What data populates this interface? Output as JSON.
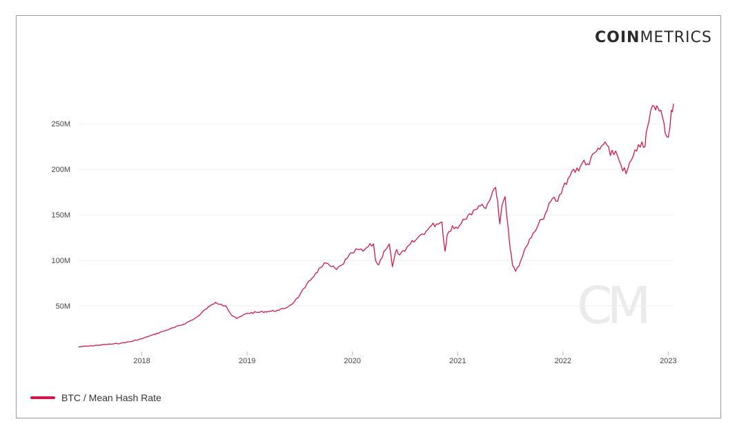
{
  "brand": {
    "bold": "COIN",
    "light": "METRICS",
    "watermark": "CM"
  },
  "chart_data": {
    "type": "line",
    "ylabel": "",
    "xlabel": "",
    "xlim": [
      2017.4,
      2023.05
    ],
    "ylim": [
      0,
      285
    ],
    "y_ticks": [
      50,
      100,
      150,
      200,
      250
    ],
    "y_tick_labels": [
      "50M",
      "100M",
      "150M",
      "200M",
      "250M"
    ],
    "x_ticks": [
      2018,
      2019,
      2020,
      2021,
      2022,
      2023
    ],
    "x_tick_labels": [
      "2018",
      "2019",
      "2020",
      "2021",
      "2022",
      "2023"
    ],
    "grid": "horizontal",
    "legend_position": "bottom-left",
    "series": [
      {
        "name": "BTC / Mean Hash Rate",
        "color": "#d4154a",
        "x": [
          2017.4,
          2017.5,
          2017.6,
          2017.7,
          2017.8,
          2017.9,
          2018.0,
          2018.1,
          2018.2,
          2018.3,
          2018.4,
          2018.5,
          2018.55,
          2018.6,
          2018.65,
          2018.7,
          2018.75,
          2018.8,
          2018.85,
          2018.9,
          2018.95,
          2019.0,
          2019.1,
          2019.2,
          2019.3,
          2019.35,
          2019.4,
          2019.45,
          2019.5,
          2019.55,
          2019.6,
          2019.65,
          2019.7,
          2019.75,
          2019.8,
          2019.85,
          2019.9,
          2019.95,
          2020.0,
          2020.05,
          2020.1,
          2020.15,
          2020.2,
          2020.22,
          2020.25,
          2020.3,
          2020.35,
          2020.38,
          2020.42,
          2020.45,
          2020.5,
          2020.55,
          2020.6,
          2020.65,
          2020.7,
          2020.75,
          2020.8,
          2020.85,
          2020.88,
          2020.9,
          2020.95,
          2021.0,
          2021.05,
          2021.1,
          2021.15,
          2021.2,
          2021.25,
          2021.3,
          2021.33,
          2021.36,
          2021.38,
          2021.4,
          2021.42,
          2021.45,
          2021.48,
          2021.5,
          2021.52,
          2021.55,
          2021.6,
          2021.65,
          2021.7,
          2021.75,
          2021.8,
          2021.85,
          2021.9,
          2021.95,
          2022.0,
          2022.05,
          2022.1,
          2022.15,
          2022.2,
          2022.25,
          2022.3,
          2022.35,
          2022.4,
          2022.45,
          2022.5,
          2022.55,
          2022.6,
          2022.65,
          2022.7,
          2022.75,
          2022.78,
          2022.8,
          2022.85,
          2022.88,
          2022.9,
          2022.93,
          2022.95,
          2022.97,
          2023.0,
          2023.03,
          2023.05
        ],
        "y": [
          5,
          6,
          7,
          8,
          9,
          11,
          14,
          18,
          22,
          26,
          30,
          36,
          40,
          46,
          50,
          54,
          52,
          50,
          40,
          36,
          39,
          42,
          43,
          44,
          45,
          47,
          50,
          55,
          62,
          70,
          78,
          86,
          92,
          97,
          93,
          90,
          95,
          102,
          108,
          112,
          110,
          115,
          118,
          100,
          95,
          110,
          118,
          93,
          112,
          106,
          110,
          118,
          122,
          128,
          132,
          138,
          140,
          142,
          110,
          128,
          138,
          135,
          145,
          150,
          155,
          160,
          158,
          165,
          175,
          180,
          165,
          140,
          160,
          170,
          135,
          112,
          95,
          88,
          100,
          115,
          125,
          135,
          145,
          155,
          168,
          165,
          180,
          190,
          200,
          198,
          210,
          205,
          218,
          222,
          230,
          215,
          220,
          205,
          195,
          210,
          220,
          230,
          225,
          245,
          270,
          265,
          268,
          265,
          255,
          240,
          235,
          265,
          272
        ]
      }
    ]
  }
}
